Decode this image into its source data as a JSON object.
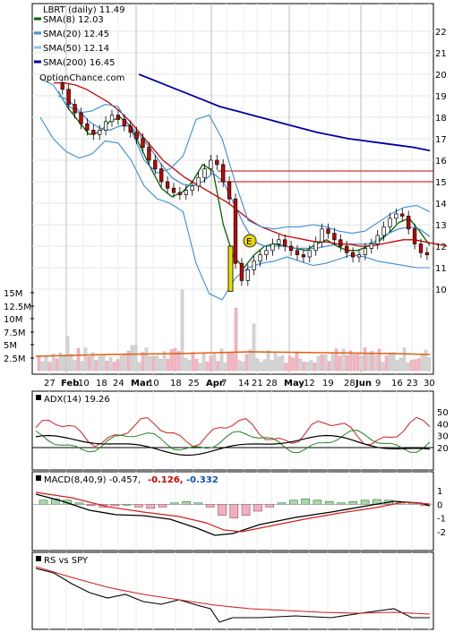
{
  "chart_data": {
    "type": "line",
    "title": "LBRT (daily) 11.49",
    "watermark": "OptionChance.com",
    "legend": [
      {
        "label": "SMA(8) 12.03",
        "color": "#006400"
      },
      {
        "label": "SMA(20) 12.45",
        "color": "#4a8fd0"
      },
      {
        "label": "SMA(50) 12.14",
        "color": "#90c8ef"
      },
      {
        "label": "SMA(200) 16.45",
        "color": "#0000a0"
      }
    ],
    "price_ticks": [
      "22",
      "21",
      "20",
      "19",
      "18",
      "17",
      "16",
      "15",
      "14",
      "13",
      "12",
      "11",
      "10"
    ],
    "volume_ticks": [
      "15M",
      "12.5M",
      "10M",
      "7.5M",
      "5M",
      "2.5M"
    ],
    "x_ticks": [
      "27",
      "Feb",
      "10",
      "18",
      "24",
      "Mar",
      "10",
      "18",
      "25",
      "Apr",
      "7",
      "14",
      "21",
      "28",
      "May",
      "12",
      "19",
      "28",
      "Jun",
      "9",
      "16",
      "23",
      "30"
    ],
    "horizontal_levels": [
      15.5,
      15.0
    ],
    "earnings_marker": "E",
    "price_line_color": "#cc0000",
    "panels": [
      {
        "label": "ADX(14) 19.26",
        "ticks": [
          "50",
          "40",
          "30",
          "20"
        ]
      },
      {
        "label": "MACD(8,40,9) -0.457,",
        "value2": "-0.126,",
        "value2_color": "#cc0000",
        "value3": "-0.332",
        "value3_color": "#1050c0",
        "ticks": [
          "1",
          "0",
          "-1",
          "-2"
        ]
      },
      {
        "label": "RS vs SPY",
        "ticks": []
      }
    ],
    "series": [
      {
        "name": "SMA(8)",
        "color": "#006400",
        "values": [
          19.2,
          18.4,
          17.8,
          17.2,
          17.3,
          17.8,
          18.0,
          17.6,
          16.6,
          15.6,
          14.7,
          14.3,
          14.5,
          15.0,
          15.8,
          15.5,
          13.0,
          11.5,
          11.0,
          11.6,
          12.0,
          12.1,
          12.0,
          11.9,
          11.8,
          12.1,
          12.3,
          12.0,
          11.8,
          11.8,
          12.0,
          12.2,
          12.6,
          13.1,
          13.3,
          12.7,
          12.03
        ]
      },
      {
        "name": "SMA(20)",
        "color": "#4a8fd0",
        "values": [
          19.0,
          18.8,
          18.3,
          17.8,
          17.5,
          17.4,
          17.6,
          17.6,
          17.1,
          16.5,
          15.8,
          15.2,
          14.9,
          14.8,
          15.0,
          15.4,
          15.0,
          14.0,
          13.0,
          12.2,
          12.0,
          12.0,
          12.0,
          11.9,
          11.9,
          11.9,
          12.0,
          12.1,
          12.1,
          12.1,
          12.1,
          12.3,
          12.6,
          12.8,
          12.9,
          12.8,
          12.45
        ]
      },
      {
        "name": "SMA(50)",
        "color": "#90c8ef",
        "values": [
          null,
          null,
          null,
          null,
          null,
          null,
          null,
          null,
          null,
          null,
          null,
          null,
          null,
          null,
          null,
          null,
          null,
          null,
          null,
          null,
          null,
          null,
          null,
          null,
          null,
          null,
          null,
          null,
          null,
          null,
          null,
          null,
          null,
          null,
          null,
          null,
          12.14
        ]
      },
      {
        "name": "SMA(200)",
        "color": "#0000a0",
        "values": [
          null,
          null,
          null,
          null,
          null,
          20.0,
          19.7,
          19.4,
          19.1,
          18.8,
          18.5,
          18.3,
          18.1,
          17.9,
          17.7,
          17.5,
          17.3,
          17.15,
          17.0,
          16.9,
          16.8,
          16.7,
          16.6,
          16.45
        ]
      }
    ]
  }
}
